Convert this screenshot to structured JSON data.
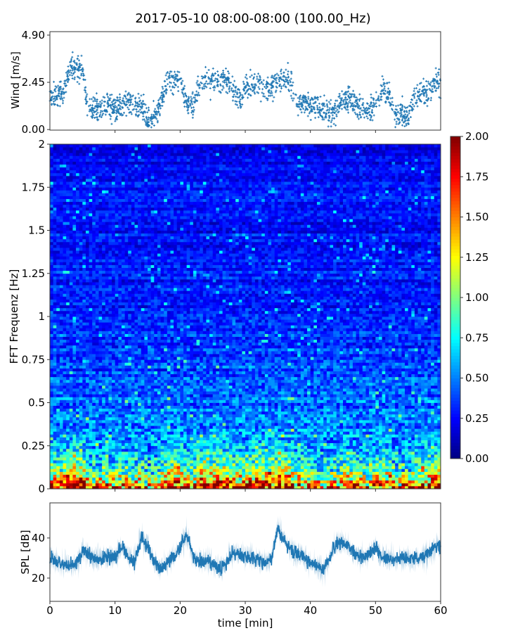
{
  "chart_data": [
    {
      "type": "scatter",
      "title": "2017-05-10 08:00-08:00 (100.00_Hz)",
      "ylabel": "Wind [m/s]",
      "xlim": [
        0,
        60
      ],
      "ylim": [
        0,
        5.08
      ],
      "yticks": [
        "0.00",
        "2.45",
        "4.90"
      ],
      "marker": "+",
      "color": "#1f77b4",
      "x_minutes": [
        0,
        1,
        2,
        3,
        4,
        5,
        6,
        7,
        8,
        9,
        10,
        11,
        12,
        13,
        14,
        15,
        16,
        17,
        18,
        19,
        20,
        21,
        22,
        23,
        24,
        25,
        26,
        27,
        28,
        29,
        30,
        31,
        32,
        33,
        34,
        35,
        36,
        37,
        38,
        39,
        40,
        41,
        42,
        43,
        44,
        45,
        46,
        47,
        48,
        49,
        50,
        51,
        52,
        53,
        54,
        55,
        56,
        57,
        58,
        59,
        60
      ],
      "wind_mean": [
        1.8,
        1.7,
        1.9,
        3.0,
        3.2,
        3.0,
        0.8,
        1.2,
        1.1,
        1.3,
        1.0,
        1.3,
        1.5,
        1.2,
        1.4,
        0.5,
        0.6,
        1.3,
        2.4,
        2.6,
        2.5,
        1.3,
        1.2,
        2.4,
        2.6,
        2.5,
        2.4,
        2.6,
        2.2,
        1.5,
        2.2,
        2.3,
        2.5,
        2.2,
        2.1,
        2.6,
        2.7,
        2.4,
        1.3,
        1.4,
        1.2,
        1.3,
        0.9,
        0.8,
        1.0,
        1.6,
        1.5,
        1.3,
        1.1,
        1.0,
        1.2,
        2.0,
        1.9,
        0.7,
        0.8,
        0.7,
        1.7,
        1.9,
        1.8,
        2.5,
        2.4
      ]
    },
    {
      "type": "heatmap",
      "ylabel": "FFT Frequenz [Hz]",
      "xlim": [
        0,
        60
      ],
      "ylim": [
        0,
        2
      ],
      "yticks": [
        "0",
        "0.25",
        "0.5",
        "0.75",
        "1",
        "1.25",
        "1.5",
        "1.75",
        "2"
      ],
      "colormap": "jet",
      "colorbar": {
        "range": [
          0,
          2
        ],
        "ticks": [
          "0.00",
          "0.25",
          "0.50",
          "0.75",
          "1.00",
          "1.25",
          "1.50",
          "1.75",
          "2.00"
        ]
      },
      "level_by_frequency": [
        [
          0,
          1.75
        ],
        [
          0.05,
          1.3
        ],
        [
          0.1,
          0.95
        ],
        [
          0.2,
          0.7
        ],
        [
          0.3,
          0.55
        ],
        [
          0.5,
          0.45
        ],
        [
          0.75,
          0.38
        ],
        [
          1,
          0.32
        ],
        [
          1.5,
          0.27
        ],
        [
          2,
          0.24
        ]
      ]
    },
    {
      "type": "line",
      "ylabel": "SPL [dB]",
      "xlabel": "time [min]",
      "xlim": [
        0,
        60
      ],
      "ylim": [
        8.4,
        57.5
      ],
      "xticks": [
        "0",
        "10",
        "20",
        "30",
        "40",
        "50",
        "60"
      ],
      "yticks": [
        "20",
        "40"
      ],
      "color": "#1f77b4",
      "x_minutes": [
        0,
        1,
        2,
        3,
        4,
        5,
        6,
        7,
        8,
        9,
        10,
        11,
        12,
        13,
        14,
        15,
        16,
        17,
        18,
        19,
        20,
        21,
        22,
        23,
        24,
        25,
        26,
        27,
        28,
        29,
        30,
        31,
        32,
        33,
        34,
        35,
        36,
        37,
        38,
        39,
        40,
        41,
        42,
        43,
        44,
        45,
        46,
        47,
        48,
        49,
        50,
        51,
        52,
        53,
        54,
        55,
        56,
        57,
        58,
        59,
        60
      ],
      "spl_mean": [
        30,
        28,
        27,
        26,
        26,
        33,
        32,
        30,
        30,
        31,
        30,
        36,
        31,
        28,
        40,
        36,
        28,
        24,
        28,
        30,
        35,
        42,
        30,
        28,
        29,
        27,
        24,
        27,
        33,
        32,
        31,
        30,
        29,
        28,
        30,
        45,
        38,
        34,
        32,
        31,
        27,
        26,
        24,
        30,
        37,
        38,
        35,
        32,
        30,
        32,
        36,
        30,
        30,
        29,
        30,
        30,
        30,
        30,
        32,
        35,
        36
      ]
    }
  ]
}
